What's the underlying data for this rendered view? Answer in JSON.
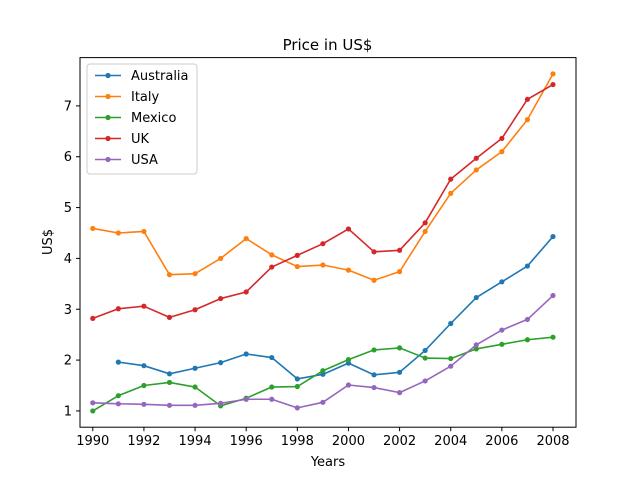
{
  "chart_data": {
    "type": "line",
    "title": "Price in US$",
    "xlabel": "Years",
    "ylabel": "US$",
    "xlim": [
      1989.5,
      2008.9
    ],
    "ylim": [
      0.68,
      7.95
    ],
    "xticks": [
      1990,
      1992,
      1994,
      1996,
      1998,
      2000,
      2002,
      2004,
      2006,
      2008
    ],
    "yticks": [
      1,
      2,
      3,
      4,
      5,
      6,
      7
    ],
    "grid": false,
    "legend_position": "top-left",
    "x": [
      1990,
      1991,
      1992,
      1993,
      1994,
      1995,
      1996,
      1997,
      1998,
      1999,
      2000,
      2001,
      2002,
      2003,
      2004,
      2005,
      2006,
      2007,
      2008
    ],
    "series": [
      {
        "name": "Australia",
        "color": "#1f77b4",
        "values": [
          null,
          1.96,
          1.89,
          1.73,
          1.84,
          1.95,
          2.12,
          2.05,
          1.63,
          1.72,
          1.94,
          1.71,
          1.76,
          2.19,
          2.72,
          3.23,
          3.54,
          3.85,
          4.43
        ]
      },
      {
        "name": "Italy",
        "color": "#ff7f0e",
        "values": [
          4.59,
          4.5,
          4.53,
          3.68,
          3.7,
          4.0,
          4.39,
          4.07,
          3.84,
          3.87,
          3.77,
          3.57,
          3.74,
          4.53,
          5.28,
          5.74,
          6.1,
          6.73,
          7.63
        ]
      },
      {
        "name": "Mexico",
        "color": "#2ca02c",
        "values": [
          1.0,
          1.3,
          1.5,
          1.56,
          1.47,
          1.1,
          1.25,
          1.47,
          1.48,
          1.79,
          2.01,
          2.2,
          2.24,
          2.04,
          2.03,
          2.22,
          2.31,
          2.4,
          2.45
        ]
      },
      {
        "name": "UK",
        "color": "#d62728",
        "values": [
          2.82,
          3.01,
          3.06,
          2.84,
          2.99,
          3.21,
          3.34,
          3.83,
          4.06,
          4.29,
          4.58,
          4.13,
          4.16,
          4.7,
          5.56,
          5.97,
          6.36,
          7.13,
          7.42
        ]
      },
      {
        "name": "USA",
        "color": "#9467bd",
        "values": [
          1.16,
          1.14,
          1.13,
          1.11,
          1.11,
          1.15,
          1.23,
          1.23,
          1.06,
          1.17,
          1.51,
          1.46,
          1.36,
          1.59,
          1.88,
          2.3,
          2.59,
          2.8,
          3.27
        ]
      }
    ]
  }
}
